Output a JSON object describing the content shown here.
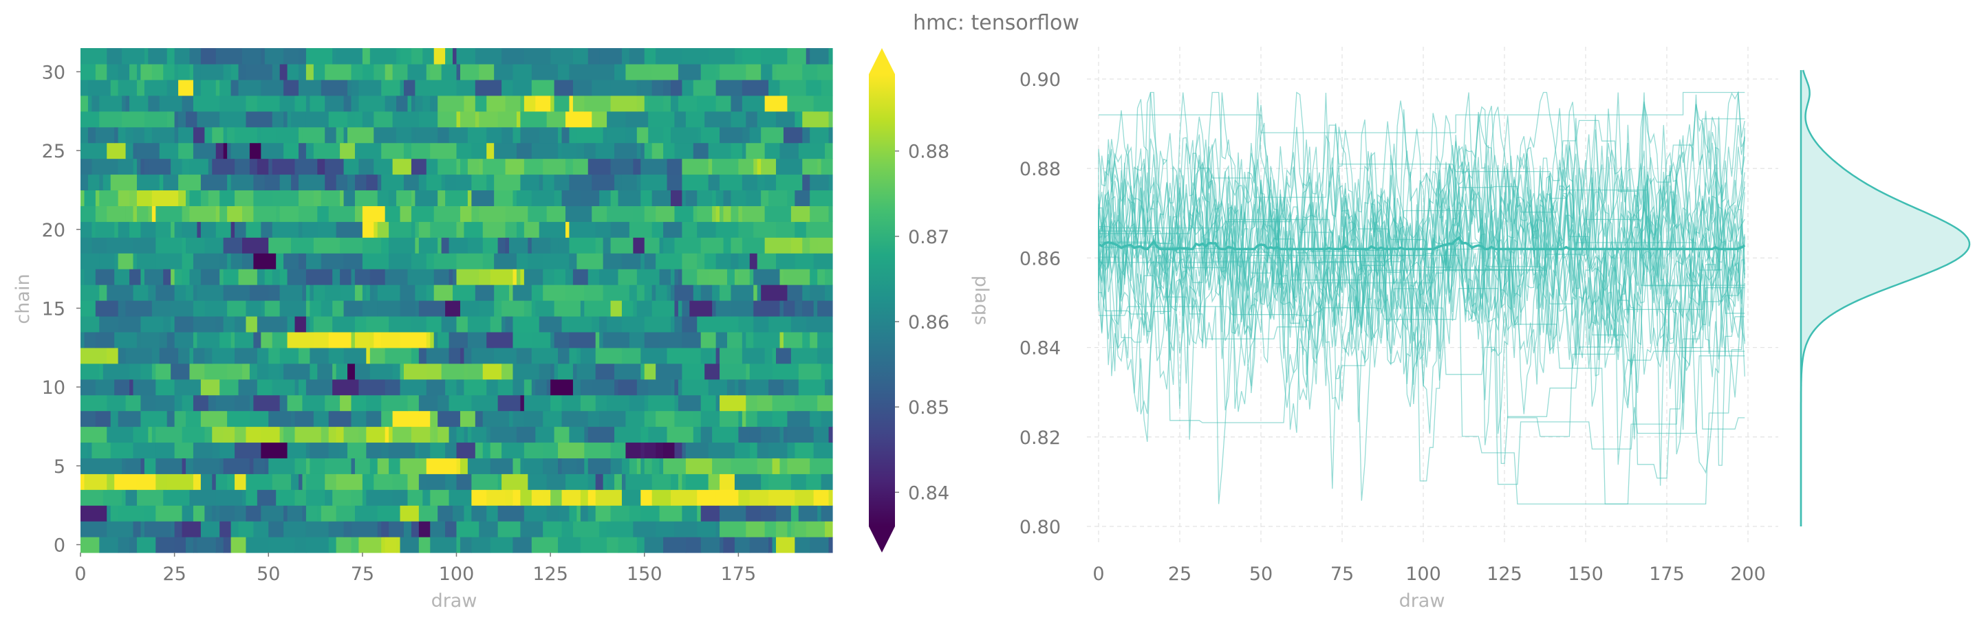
{
  "figure": {
    "title": "hmc: tensorflow"
  },
  "chart_data": [
    {
      "type": "heatmap",
      "xlabel": "draw",
      "ylabel": "chain",
      "x_range": [
        0,
        200
      ],
      "y_range": [
        0,
        32
      ],
      "x_ticks": [
        0,
        25,
        50,
        75,
        100,
        125,
        150,
        175
      ],
      "y_ticks": [
        0,
        5,
        10,
        15,
        20,
        25,
        30
      ],
      "n_chains": 32,
      "n_draws": 200,
      "colormap": "viridis",
      "colorbar": {
        "label": "plaqs",
        "ticks": [
          0.84,
          0.85,
          0.86,
          0.87,
          0.88
        ],
        "range": [
          0.836,
          0.889
        ],
        "extend": "both"
      },
      "values_description_by_chain": [
        {
          "chain": 0,
          "segments": [
            [
              0,
              20,
              0.858
            ],
            [
              20,
              40,
              0.853
            ],
            [
              40,
              68,
              0.865
            ],
            [
              68,
              80,
              0.876
            ],
            [
              80,
              85,
              0.884
            ],
            [
              85,
              120,
              0.86
            ],
            [
              120,
              150,
              0.866
            ],
            [
              150,
              200,
              0.855
            ]
          ]
        },
        {
          "chain": 1,
          "segments": [
            [
              0,
              25,
              0.855
            ],
            [
              25,
              40,
              0.846
            ],
            [
              40,
              70,
              0.862
            ],
            [
              70,
              100,
              0.852
            ],
            [
              100,
              140,
              0.866
            ],
            [
              140,
              170,
              0.858
            ],
            [
              170,
              200,
              0.875
            ]
          ]
        },
        {
          "chain": 2,
          "segments": [
            [
              0,
              30,
              0.866
            ],
            [
              30,
              60,
              0.856
            ],
            [
              60,
              95,
              0.87
            ],
            [
              95,
              130,
              0.861
            ],
            [
              130,
              165,
              0.868
            ],
            [
              165,
              200,
              0.857
            ]
          ]
        },
        {
          "chain": 3,
          "segments": [
            [
              0,
              12,
              0.872
            ],
            [
              12,
              60,
              0.862
            ],
            [
              60,
              104,
              0.868
            ],
            [
              104,
              200,
              0.887
            ]
          ]
        },
        {
          "chain": 4,
          "segments": [
            [
              0,
              15,
              0.885
            ],
            [
              15,
              32,
              0.884
            ],
            [
              32,
              65,
              0.866
            ],
            [
              65,
              90,
              0.872
            ],
            [
              90,
              140,
              0.86
            ],
            [
              140,
              200,
              0.868
            ]
          ]
        },
        {
          "chain": 5,
          "segments": [
            [
              0,
              20,
              0.86
            ],
            [
              20,
              50,
              0.853
            ],
            [
              50,
              85,
              0.87
            ],
            [
              85,
              103,
              0.884
            ],
            [
              103,
              150,
              0.858
            ],
            [
              150,
              200,
              0.876
            ]
          ]
        },
        {
          "chain": 6,
          "segments": [
            [
              0,
              30,
              0.868
            ],
            [
              30,
              60,
              0.858
            ],
            [
              60,
              100,
              0.864
            ],
            [
              100,
              145,
              0.872
            ],
            [
              145,
              160,
              0.84
            ],
            [
              160,
              200,
              0.862
            ]
          ]
        },
        {
          "chain": 7,
          "segments": [
            [
              0,
              18,
              0.862
            ],
            [
              18,
              35,
              0.871
            ],
            [
              35,
              98,
              0.88
            ],
            [
              98,
              135,
              0.86
            ],
            [
              135,
              175,
              0.866
            ],
            [
              175,
              200,
              0.855
            ]
          ]
        },
        {
          "chain": 8,
          "segments": [
            [
              0,
              25,
              0.856
            ],
            [
              25,
              50,
              0.866
            ],
            [
              50,
              80,
              0.858
            ],
            [
              80,
              105,
              0.875
            ],
            [
              105,
              150,
              0.862
            ],
            [
              150,
              200,
              0.868
            ]
          ]
        },
        {
          "chain": 9,
          "segments": [
            [
              0,
              30,
              0.864
            ],
            [
              30,
              55,
              0.855
            ],
            [
              55,
              90,
              0.869
            ],
            [
              90,
              125,
              0.86
            ],
            [
              125,
              170,
              0.866
            ],
            [
              170,
              200,
              0.873
            ]
          ]
        },
        {
          "chain": 10,
          "segments": [
            [
              0,
              20,
              0.858
            ],
            [
              20,
              60,
              0.866
            ],
            [
              60,
              85,
              0.852
            ],
            [
              85,
              120,
              0.864
            ],
            [
              120,
              160,
              0.857
            ],
            [
              160,
              200,
              0.862
            ]
          ]
        },
        {
          "chain": 11,
          "segments": [
            [
              0,
              20,
              0.866
            ],
            [
              20,
              45,
              0.876
            ],
            [
              45,
              85,
              0.862
            ],
            [
              85,
              115,
              0.878
            ],
            [
              115,
              150,
              0.858
            ],
            [
              150,
              200,
              0.866
            ]
          ]
        },
        {
          "chain": 12,
          "segments": [
            [
              0,
              10,
              0.884
            ],
            [
              10,
              50,
              0.862
            ],
            [
              50,
              90,
              0.868
            ],
            [
              90,
              130,
              0.858
            ],
            [
              130,
              170,
              0.866
            ],
            [
              170,
              200,
              0.862
            ]
          ]
        },
        {
          "chain": 13,
          "segments": [
            [
              0,
              30,
              0.86
            ],
            [
              30,
              55,
              0.868
            ],
            [
              55,
              94,
              0.887
            ],
            [
              94,
              130,
              0.862
            ],
            [
              130,
              165,
              0.855
            ],
            [
              165,
              200,
              0.868
            ]
          ]
        },
        {
          "chain": 14,
          "segments": [
            [
              0,
              25,
              0.862
            ],
            [
              25,
              55,
              0.856
            ],
            [
              55,
              100,
              0.866
            ],
            [
              100,
              140,
              0.86
            ],
            [
              140,
              200,
              0.864
            ]
          ]
        },
        {
          "chain": 15,
          "segments": [
            [
              0,
              30,
              0.858
            ],
            [
              30,
              70,
              0.866
            ],
            [
              70,
              110,
              0.86
            ],
            [
              110,
              160,
              0.868
            ],
            [
              160,
              200,
              0.856
            ]
          ]
        },
        {
          "chain": 16,
          "segments": [
            [
              0,
              20,
              0.866
            ],
            [
              20,
              60,
              0.858
            ],
            [
              60,
              110,
              0.864
            ],
            [
              110,
              150,
              0.87
            ],
            [
              150,
              200,
              0.86
            ]
          ]
        },
        {
          "chain": 17,
          "segments": [
            [
              0,
              25,
              0.862
            ],
            [
              25,
              60,
              0.868
            ],
            [
              60,
              100,
              0.855
            ],
            [
              100,
              118,
              0.884
            ],
            [
              118,
              160,
              0.866
            ],
            [
              160,
              200,
              0.872
            ]
          ]
        },
        {
          "chain": 18,
          "segments": [
            [
              0,
              30,
              0.866
            ],
            [
              30,
              75,
              0.86
            ],
            [
              75,
              110,
              0.868
            ],
            [
              110,
              150,
              0.862
            ],
            [
              150,
              200,
              0.866
            ]
          ]
        },
        {
          "chain": 19,
          "segments": [
            [
              0,
              20,
              0.86
            ],
            [
              20,
              50,
              0.866
            ],
            [
              50,
              90,
              0.872
            ],
            [
              90,
              130,
              0.862
            ],
            [
              130,
              182,
              0.868
            ],
            [
              182,
              200,
              0.879
            ]
          ]
        },
        {
          "chain": 20,
          "segments": [
            [
              0,
              25,
              0.866
            ],
            [
              25,
              75,
              0.86
            ],
            [
              75,
              82,
              0.882
            ],
            [
              82,
              130,
              0.872
            ],
            [
              130,
              160,
              0.862
            ],
            [
              160,
              200,
              0.868
            ]
          ]
        },
        {
          "chain": 21,
          "segments": [
            [
              0,
              200,
              0.875
            ]
          ]
        },
        {
          "chain": 22,
          "segments": [
            [
              0,
              15,
              0.878
            ],
            [
              15,
              28,
              0.883
            ],
            [
              28,
              70,
              0.872
            ],
            [
              70,
              120,
              0.868
            ],
            [
              120,
              160,
              0.86
            ],
            [
              160,
              200,
              0.866
            ]
          ]
        },
        {
          "chain": 23,
          "segments": [
            [
              0,
              40,
              0.862
            ],
            [
              40,
              80,
              0.856
            ],
            [
              80,
              130,
              0.866
            ],
            [
              130,
              160,
              0.858
            ],
            [
              160,
              200,
              0.864
            ]
          ]
        },
        {
          "chain": 24,
          "segments": [
            [
              0,
              35,
              0.858
            ],
            [
              35,
              70,
              0.85
            ],
            [
              70,
              95,
              0.862
            ],
            [
              95,
              135,
              0.874
            ],
            [
              135,
              160,
              0.855
            ],
            [
              160,
              200,
              0.876
            ]
          ]
        },
        {
          "chain": 25,
          "segments": [
            [
              0,
              30,
              0.866
            ],
            [
              30,
              60,
              0.856
            ],
            [
              60,
              110,
              0.868
            ],
            [
              110,
              150,
              0.862
            ],
            [
              150,
              200,
              0.866
            ]
          ]
        },
        {
          "chain": 26,
          "segments": [
            [
              0,
              30,
              0.862
            ],
            [
              30,
              70,
              0.868
            ],
            [
              70,
              130,
              0.86
            ],
            [
              130,
              170,
              0.866
            ],
            [
              170,
              200,
              0.858
            ]
          ]
        },
        {
          "chain": 27,
          "segments": [
            [
              0,
              25,
              0.868
            ],
            [
              25,
              60,
              0.858
            ],
            [
              60,
              95,
              0.866
            ],
            [
              95,
              140,
              0.878
            ],
            [
              140,
              190,
              0.862
            ],
            [
              190,
              200,
              0.877
            ]
          ]
        },
        {
          "chain": 28,
          "segments": [
            [
              0,
              30,
              0.86
            ],
            [
              30,
              65,
              0.866
            ],
            [
              65,
              95,
              0.862
            ],
            [
              95,
              150,
              0.878
            ],
            [
              150,
              200,
              0.868
            ]
          ]
        },
        {
          "chain": 29,
          "segments": [
            [
              0,
              40,
              0.866
            ],
            [
              40,
              80,
              0.858
            ],
            [
              80,
              120,
              0.866
            ],
            [
              120,
              160,
              0.86
            ],
            [
              160,
              200,
              0.866
            ]
          ]
        },
        {
          "chain": 30,
          "segments": [
            [
              0,
              30,
              0.868
            ],
            [
              30,
              60,
              0.862
            ],
            [
              60,
              110,
              0.87
            ],
            [
              110,
              145,
              0.858
            ],
            [
              145,
              200,
              0.872
            ]
          ]
        },
        {
          "chain": 31,
          "segments": [
            [
              0,
              25,
              0.862
            ],
            [
              25,
              60,
              0.856
            ],
            [
              60,
              100,
              0.866
            ],
            [
              100,
              150,
              0.86
            ],
            [
              150,
              200,
              0.866
            ]
          ]
        }
      ]
    },
    {
      "type": "line",
      "xlabel": "draw",
      "ylabel": "",
      "xlim": [
        0,
        200
      ],
      "ylim": [
        0.8,
        0.9
      ],
      "x_ticks": [
        0,
        25,
        50,
        75,
        100,
        125,
        150,
        175,
        200
      ],
      "y_ticks": [
        0.8,
        0.82,
        0.84,
        0.86,
        0.88,
        0.9
      ],
      "grid": true,
      "color": "#3fbdb2",
      "n_traces": 32,
      "mean_trace": {
        "value": 0.863,
        "range": [
          0.862,
          0.865
        ]
      },
      "trace_value_range": [
        0.805,
        0.897
      ],
      "marginal_density": {
        "type": "kde",
        "mode": 0.863,
        "support": [
          0.8,
          0.902
        ]
      }
    }
  ]
}
